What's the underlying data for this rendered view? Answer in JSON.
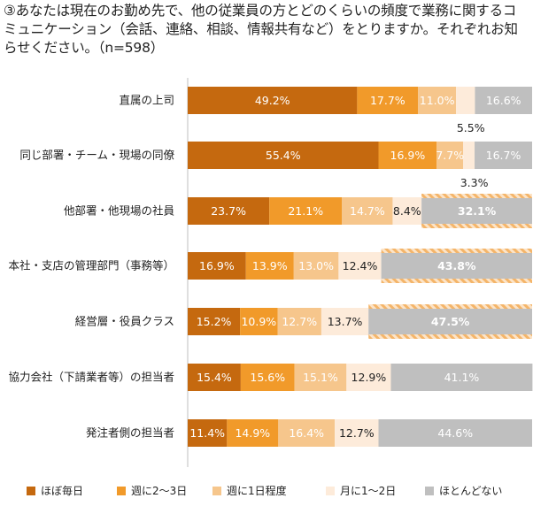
{
  "title": "③あなたは現在のお勤め先で、他の従業員の方とどのくらいの頻度で業務に関するコミュニケーション（会話、連絡、相談、情報共有など）をとりますか。それぞれお知らせください。（n=598）",
  "chart_data": {
    "type": "bar",
    "orientation": "horizontal",
    "stacked": true,
    "percent_stacked": true,
    "title": "③あなたは現在のお勤め先で、他の従業員の方とどのくらいの頻度で業務に関するコミュニケーション（会話、連絡、相談、情報共有など）をとりますか。それぞれお知らせください。（n=598）",
    "xlim": [
      0,
      100
    ],
    "categories": [
      "直属の上司",
      "同じ部署・チーム・現場の同僚",
      "他部署・他現場の社員",
      "本社・支店の管理部門（事務等）",
      "経営層・役員クラス",
      "協力会社（下請業者等）の担当者",
      "発注者側の担当者"
    ],
    "series": [
      {
        "name": "ほぼ毎日",
        "color": "#C5690F",
        "values": [
          49.2,
          55.4,
          23.7,
          16.9,
          15.2,
          15.4,
          11.4
        ],
        "labels": [
          "49.2%",
          "55.4%",
          "23.7%",
          "16.9%",
          "15.2%",
          "15.4%",
          "11.4%"
        ]
      },
      {
        "name": "週に2～3日",
        "color": "#F19A2A",
        "values": [
          17.7,
          16.9,
          21.1,
          13.9,
          10.9,
          15.6,
          14.9
        ],
        "labels": [
          "17.7%",
          "16.9%",
          "21.1%",
          "13.9%",
          "10.9%",
          "15.6%",
          "14.9%"
        ]
      },
      {
        "name": "週に1日程度",
        "color": "#F6C68C",
        "values": [
          11.0,
          7.7,
          14.7,
          13.0,
          12.7,
          15.1,
          16.4
        ],
        "labels": [
          "11.0%",
          "7.7%",
          "14.7%",
          "13.0%",
          "12.7%",
          "15.1%",
          "16.4%"
        ]
      },
      {
        "name": "月に1～2日",
        "color": "#FDEBDA",
        "values": [
          5.5,
          3.3,
          8.4,
          12.4,
          13.7,
          12.9,
          12.7
        ],
        "labels": [
          "5.5%",
          "3.3%",
          "8.4%",
          "12.4%",
          "13.7%",
          "12.9%",
          "12.7%"
        ]
      },
      {
        "name": "ほとんどない",
        "color": "#BFBFBF",
        "values": [
          16.6,
          16.7,
          32.1,
          43.8,
          47.5,
          41.1,
          44.6
        ],
        "labels": [
          "16.6%",
          "16.7%",
          "32.1%",
          "43.8%",
          "47.5%",
          "41.1%",
          "44.6%"
        ]
      }
    ],
    "highlighted_bars": [
      {
        "series": "ほとんどない",
        "category": "他部署・他現場の社員"
      },
      {
        "series": "ほとんどない",
        "category": "本社・支店の管理部門（事務等）"
      },
      {
        "series": "ほとんどない",
        "category": "経営層・役員クラス"
      }
    ],
    "legend_position": "bottom"
  }
}
